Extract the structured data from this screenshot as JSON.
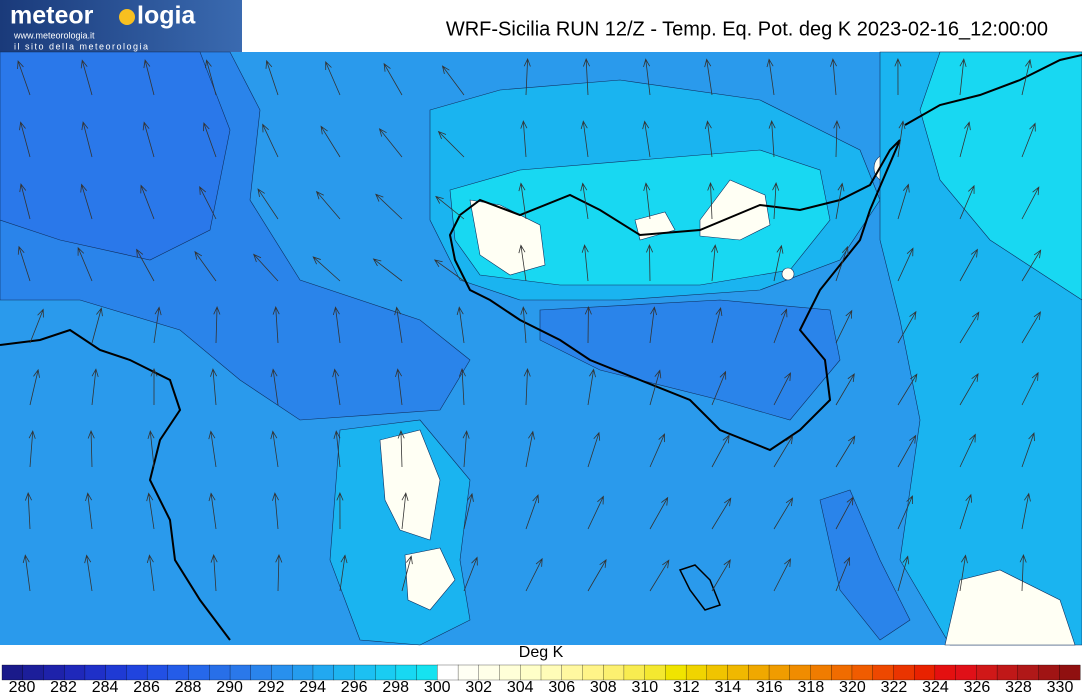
{
  "header": {
    "logo_left": "meteor",
    "logo_right": "logia",
    "logo_url": "www.meteorologia.it",
    "logo_tagline": "il sito della meteorologia",
    "title": "WRF-Sicilia RUN 12/Z - Temp. Eq. Pot. deg K 2023-02-16_12:00:00"
  },
  "colorbar": {
    "label": "Deg K",
    "ticks": [
      280,
      282,
      284,
      286,
      288,
      290,
      292,
      294,
      296,
      298,
      300,
      302,
      304,
      306,
      308,
      310,
      312,
      314,
      316,
      318,
      320,
      322,
      324,
      326,
      328,
      330
    ],
    "colors": [
      "#1a1a8a",
      "#1c1e9a",
      "#1e22aa",
      "#1f28ba",
      "#1f30c8",
      "#1f3ad4",
      "#2044de",
      "#2250e4",
      "#245ce8",
      "#2668ea",
      "#286fe8",
      "#2a78ea",
      "#2a84ec",
      "#2890ee",
      "#259cee",
      "#22a8f0",
      "#1eb4f0",
      "#1cc0f2",
      "#1accf2",
      "#18d8f2",
      "#16e2f0",
      "#ffffff",
      "#fffff4",
      "#ffffe8",
      "#ffffd8",
      "#ffffc8",
      "#fffcb8",
      "#fff8a0",
      "#fff488",
      "#fcf070",
      "#f8ec50",
      "#f4e830",
      "#f0e400",
      "#f0d400",
      "#f0c400",
      "#f0b800",
      "#f0a800",
      "#f09c00",
      "#f08c00",
      "#f07c00",
      "#f06c00",
      "#f05c00",
      "#ee4800",
      "#ea3400",
      "#e82200",
      "#e41010",
      "#e01018",
      "#d01818",
      "#c01818",
      "#b01818",
      "#a01414",
      "#901010"
    ]
  }
}
